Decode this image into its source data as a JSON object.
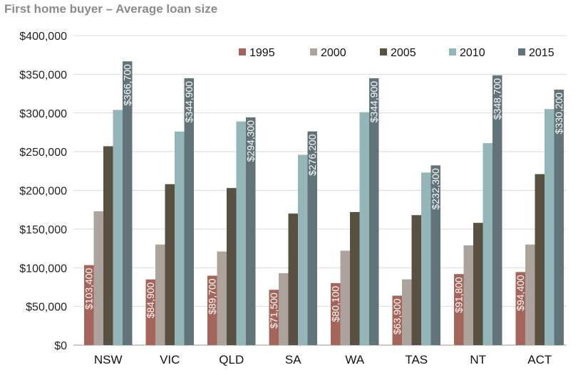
{
  "chart_data": {
    "type": "bar",
    "title": "First home buyer – Average loan size",
    "xlabel": "",
    "ylabel": "",
    "categories": [
      "NSW",
      "VIC",
      "QLD",
      "SA",
      "WA",
      "TAS",
      "NT",
      "ACT"
    ],
    "ylim": [
      0,
      400000
    ],
    "yticks": [
      {
        "value": 0,
        "label": "$0"
      },
      {
        "value": 50000,
        "label": "$50,000"
      },
      {
        "value": 100000,
        "label": "$100,000"
      },
      {
        "value": 150000,
        "label": "$150,000"
      },
      {
        "value": 200000,
        "label": "$200,000"
      },
      {
        "value": 250000,
        "label": "$250,000"
      },
      {
        "value": 300000,
        "label": "$300,000"
      },
      {
        "value": 350000,
        "label": "$350,000"
      },
      {
        "value": 400000,
        "label": "$400,000"
      }
    ],
    "grid": true,
    "legend_position": "top-right",
    "series": [
      {
        "name": "1995",
        "color": "#a6655a",
        "values": [
          103400,
          84900,
          89700,
          71500,
          80100,
          63900,
          91800,
          94400
        ],
        "labels": [
          "$103,400",
          "$84,900",
          "$89,700",
          "$71,500",
          "$80,100",
          "$63,900",
          "$91,800",
          "$94,400"
        ]
      },
      {
        "name": "2000",
        "color": "#aca49c",
        "values": [
          173000,
          130000,
          121000,
          93000,
          122000,
          85000,
          129000,
          130000
        ]
      },
      {
        "name": "2005",
        "color": "#585040",
        "values": [
          257000,
          208000,
          203000,
          170000,
          172000,
          168000,
          158000,
          221000
        ]
      },
      {
        "name": "2010",
        "color": "#94b6b9",
        "values": [
          304000,
          276000,
          289000,
          246000,
          301000,
          223000,
          261000,
          305000
        ]
      },
      {
        "name": "2015",
        "color": "#617479",
        "values": [
          366700,
          344900,
          294300,
          276200,
          344900,
          232300,
          348700,
          330200
        ],
        "labels": [
          "$366,700",
          "$344,900",
          "$294,300",
          "$276,200",
          "$344,900",
          "$232,300",
          "$348,700",
          "$330,200"
        ]
      }
    ]
  }
}
